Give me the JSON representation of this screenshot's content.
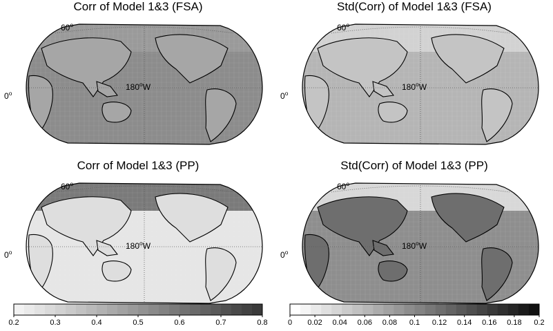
{
  "panels": [
    {
      "title": "Corr of Model 1&3 (FSA)",
      "lat_label": "60",
      "lat_sup": "o",
      "eq_label": "0",
      "eq_sup": "o",
      "lon_label": "180",
      "lon_sup": "o",
      "lon_suffix": "W",
      "ocean_shade": "#8c8c8c",
      "land_shade": "#a6a6a6",
      "north_shade": "#9a9a9a"
    },
    {
      "title": "Std(Corr) of Model 1&3 (FSA)",
      "lat_label": "60",
      "lat_sup": "o",
      "eq_label": "0",
      "eq_sup": "o",
      "lon_label": "180",
      "lon_sup": "o",
      "lon_suffix": "W",
      "ocean_shade": "#b5b5b5",
      "land_shade": "#c4c4c4",
      "north_shade": "#d2d2d2"
    },
    {
      "title": "Corr of Model 1&3 (PP)",
      "lat_label": "60",
      "lat_sup": "o",
      "eq_label": "0",
      "eq_sup": "o",
      "lon_label": "180",
      "lon_sup": "o",
      "lon_suffix": "W",
      "ocean_shade": "#e6e6e6",
      "land_shade": "#dedede",
      "north_shade": "#7a7a7a"
    },
    {
      "title": "Std(Corr) of Model 1&3 (PP)",
      "lat_label": "60",
      "lat_sup": "o",
      "eq_label": "0",
      "eq_sup": "o",
      "lon_label": "180",
      "lon_sup": "o",
      "lon_suffix": "W",
      "ocean_shade": "#8e8e8e",
      "land_shade": "#6e6e6e",
      "north_shade": "#d8d8d8"
    }
  ],
  "colorbars": [
    {
      "ticks": [
        "0.2",
        "0.3",
        "0.4",
        "0.5",
        "0.6",
        "0.7",
        "0.8"
      ],
      "start_color": "#f2f2f2",
      "end_color": "#3a3a3a"
    },
    {
      "ticks": [
        "0",
        "0.02",
        "0.04",
        "0.06",
        "0.08",
        "0.1",
        "0.12",
        "0.14",
        "0.16",
        "0.18",
        "0.2"
      ],
      "start_color": "#ffffff",
      "end_color": "#111111"
    }
  ],
  "colors": {
    "coast": "#000000",
    "grid": "#5a5a5a",
    "outline": "#000000"
  }
}
